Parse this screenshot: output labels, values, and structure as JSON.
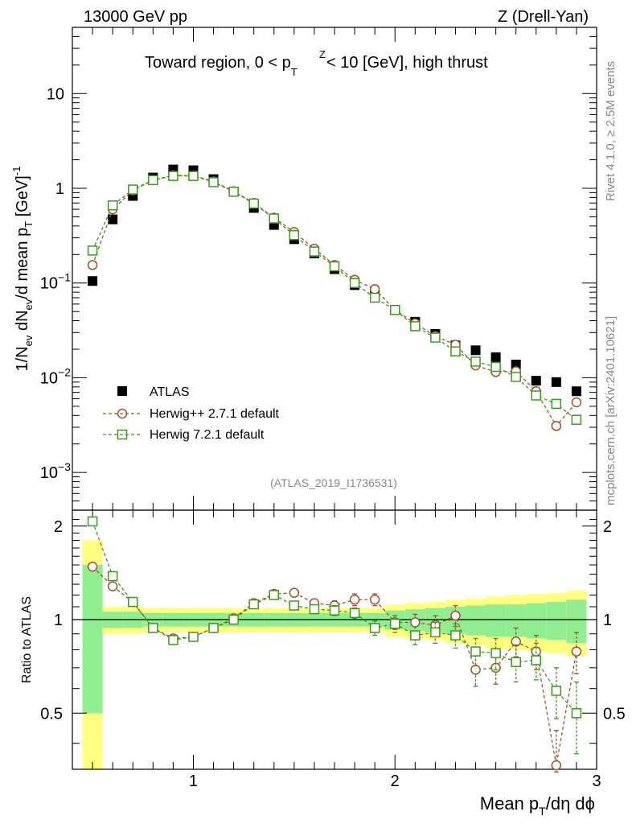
{
  "chart_data": {
    "type": "scatter",
    "header_left": "13000 GeV pp",
    "header_right": "Z (Drell-Yan)",
    "title_prefix": "Toward region, 0 < p",
    "title_sub": "T",
    "title_sup": "Z",
    "title_suffix": " < 10 [GeV], high thrust",
    "analysis_label": "(ATLAS_2019_I1736531)",
    "side_label_top": "Rivet 4.1.0, ≥ 2.5M events",
    "side_label_bottom": "mcplots.cern.ch [arXiv:2401.10621]",
    "xlabel": "Mean p_T/dη dϕ",
    "ylabel": "1/N_ev dN_ev/d mean p_T [GeV]^-1",
    "ratio_ylabel": "Ratio to ATLAS",
    "xlim": [
      0.4,
      3.0
    ],
    "ylim_main": [
      0.0004,
      50
    ],
    "ylim_ratio": [
      0.33,
      2.25
    ],
    "x_ticks": [
      "1",
      "2",
      "3"
    ],
    "y_ticks_main": [
      "10",
      "1",
      "10⁻¹",
      "10⁻²",
      "10⁻³"
    ],
    "y_ticks_ratio": [
      "2",
      "1",
      "0.5"
    ],
    "x": [
      0.5,
      0.6,
      0.7,
      0.8,
      0.9,
      1.0,
      1.1,
      1.2,
      1.3,
      1.4,
      1.5,
      1.6,
      1.7,
      1.8,
      1.9,
      2.0,
      2.1,
      2.2,
      2.3,
      2.4,
      2.5,
      2.6,
      2.7,
      2.8,
      2.9
    ],
    "series": [
      {
        "name": "ATLAS",
        "marker": "filled-square",
        "color": "#000000",
        "values": [
          0.105,
          0.47,
          0.83,
          1.3,
          1.58,
          1.55,
          1.25,
          0.92,
          0.62,
          0.41,
          0.29,
          0.205,
          0.14,
          0.095,
          0.075,
          0.052,
          0.039,
          0.029,
          0.022,
          0.0195,
          0.0165,
          0.0138,
          0.0093,
          0.009,
          0.0072
        ],
        "band_stat": [
          0.5,
          0.06,
          0.06,
          0.05,
          0.05,
          0.05,
          0.05,
          0.05,
          0.05,
          0.05,
          0.05,
          0.05,
          0.05,
          0.05,
          0.05,
          0.07,
          0.08,
          0.09,
          0.1,
          0.11,
          0.12,
          0.12,
          0.13,
          0.14,
          0.16
        ],
        "band_total": [
          0.8,
          0.1,
          0.1,
          0.09,
          0.09,
          0.09,
          0.09,
          0.09,
          0.09,
          0.09,
          0.09,
          0.09,
          0.09,
          0.09,
          0.09,
          0.12,
          0.13,
          0.14,
          0.16,
          0.17,
          0.19,
          0.2,
          0.21,
          0.22,
          0.24
        ]
      },
      {
        "name": "Herwig++ 2.7.1 default",
        "marker": "open-circle",
        "color": "#a0522d",
        "values": [
          0.155,
          0.6,
          0.95,
          1.22,
          1.37,
          1.36,
          1.18,
          0.93,
          0.7,
          0.49,
          0.345,
          0.23,
          0.155,
          0.108,
          0.086,
          0.052,
          0.0375,
          0.0275,
          0.0223,
          0.0135,
          0.0115,
          0.0117,
          0.0072,
          0.0031,
          0.0055
        ],
        "ratio": [
          1.48,
          1.28,
          1.14,
          0.94,
          0.87,
          0.88,
          0.94,
          1.01,
          1.13,
          1.21,
          1.22,
          1.13,
          1.11,
          1.16,
          1.16,
          0.98,
          0.98,
          0.96,
          1.03,
          0.69,
          0.7,
          0.85,
          0.79,
          0.34,
          0.79
        ],
        "ratio_err": [
          0.04,
          0.03,
          0.02,
          0.02,
          0.02,
          0.02,
          0.02,
          0.02,
          0.02,
          0.03,
          0.03,
          0.03,
          0.04,
          0.05,
          0.05,
          0.05,
          0.06,
          0.07,
          0.08,
          0.08,
          0.08,
          0.09,
          0.1,
          0.1,
          0.12
        ]
      },
      {
        "name": "Herwig 7.2.1 default",
        "marker": "open-square",
        "color": "#3a9a1a",
        "values": [
          0.22,
          0.66,
          0.97,
          1.22,
          1.35,
          1.35,
          1.16,
          0.92,
          0.69,
          0.48,
          0.32,
          0.215,
          0.15,
          0.1,
          0.07,
          0.052,
          0.035,
          0.0265,
          0.019,
          0.0148,
          0.013,
          0.0102,
          0.0065,
          0.0053,
          0.0036
        ],
        "ratio": [
          2.07,
          1.38,
          1.14,
          0.94,
          0.86,
          0.88,
          0.94,
          1.0,
          1.12,
          1.2,
          1.11,
          1.08,
          1.07,
          1.05,
          0.94,
          0.97,
          0.89,
          0.91,
          0.89,
          0.79,
          0.78,
          0.73,
          0.74,
          0.59,
          0.5
        ],
        "ratio_err": [
          0.05,
          0.03,
          0.02,
          0.02,
          0.02,
          0.02,
          0.02,
          0.02,
          0.02,
          0.03,
          0.03,
          0.03,
          0.04,
          0.04,
          0.05,
          0.06,
          0.06,
          0.07,
          0.08,
          0.08,
          0.09,
          0.1,
          0.1,
          0.11,
          0.13
        ]
      }
    ],
    "colors": {
      "band_stat": "#90ee90",
      "band_total": "#ffff80",
      "axis": "#000000"
    }
  }
}
